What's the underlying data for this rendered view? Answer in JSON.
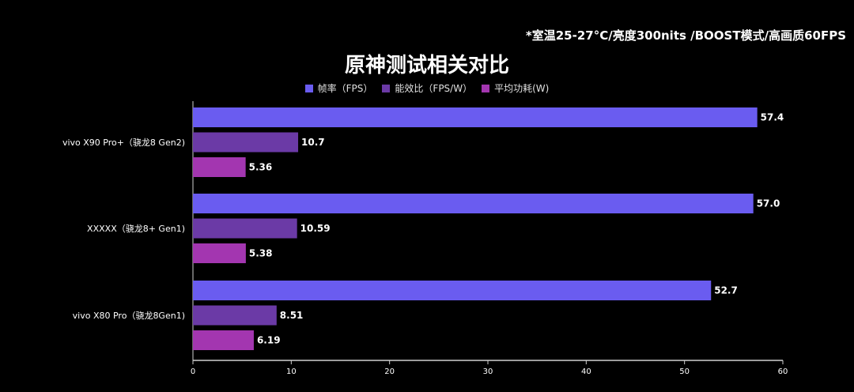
{
  "note": "*室温25-27°C/亮度300nits /BOOST模式/高画质60FPS",
  "colors": {
    "fps": "#6a5cf0",
    "efficiency": "#6b3aa6",
    "power": "#a336b0",
    "axis": "#d0d0d0",
    "label": "#ffffff"
  },
  "chart_data": {
    "type": "bar",
    "orientation": "horizontal",
    "title": "原神测试相关对比",
    "categories": [
      "vivo X90 Pro+（骁龙8 Gen2)",
      "XXXXX（骁龙8+ Gen1)",
      "vivo X80 Pro（骁龙8Gen1)"
    ],
    "series": [
      {
        "name": "帧率（FPS）",
        "values": [
          57.4,
          57.0,
          52.7
        ],
        "labels": [
          "57.4",
          "57.0",
          "52.7"
        ]
      },
      {
        "name": "能效比（FPS/W）",
        "values": [
          10.7,
          10.59,
          8.51
        ],
        "labels": [
          "10.7",
          "10.59",
          "8.51"
        ]
      },
      {
        "name": "平均功耗(W)",
        "values": [
          5.36,
          5.38,
          6.19
        ],
        "labels": [
          "5.36",
          "5.38",
          "6.19"
        ]
      }
    ],
    "xlim": [
      0,
      60
    ],
    "xticks": [
      "0",
      "10",
      "20",
      "30",
      "40",
      "50",
      "60"
    ],
    "legend_position": "top-center",
    "grid": false
  }
}
